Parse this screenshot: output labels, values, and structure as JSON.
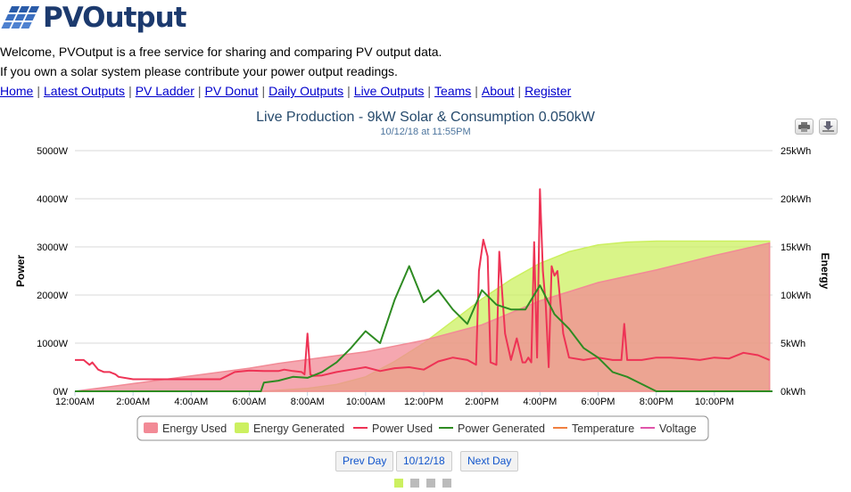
{
  "logo": {
    "text": "PVOutput"
  },
  "intro": {
    "line1": "Welcome, PVOutput is a free service for sharing and comparing PV output data.",
    "line2": "If you own a solar system please contribute your power output readings."
  },
  "nav": [
    "Home",
    "Latest Outputs",
    "PV Ladder",
    "PV Donut",
    "Daily Outputs",
    "Live Outputs",
    "Teams",
    "About",
    "Register"
  ],
  "pager": {
    "prev": "Prev Day",
    "current": "10/12/18",
    "next": "Next Day",
    "page_count": 4,
    "active_page": 0
  },
  "colors": {
    "energy_used": "#f28a96",
    "energy_generated": "#ccf060",
    "power_used": "#ee3355",
    "power_generated": "#2e8b22",
    "temperature": "#f08040",
    "voltage": "#e055aa",
    "title": "#274b6d",
    "axis_text": "#000000",
    "grid": "#d8d8d8"
  },
  "chart_data": {
    "type": "line",
    "title": "Live Production - 9kW Solar & Consumption 0.050kW",
    "subtitle": "10/12/18 at 11:55PM",
    "ylabel": "Power",
    "y2label": "Energy",
    "ylim": [
      0,
      5000
    ],
    "y2lim": [
      0,
      25
    ],
    "yticks": [
      "0W",
      "1000W",
      "2000W",
      "3000W",
      "4000W",
      "5000W"
    ],
    "y2ticks": [
      "0kWh",
      "5kWh",
      "10kWh",
      "15kWh",
      "20kWh",
      "25kWh"
    ],
    "xlim": [
      0,
      24
    ],
    "xticks": [
      "12:00AM",
      "2:00AM",
      "4:00AM",
      "6:00AM",
      "8:00AM",
      "10:00AM",
      "12:00PM",
      "2:00PM",
      "4:00PM",
      "6:00PM",
      "8:00PM",
      "10:00PM"
    ],
    "grid": true,
    "legend_position": "bottom",
    "series": [
      {
        "name": "Energy Used",
        "kind": "area",
        "axis": "right",
        "color": "#f28a96",
        "x": [
          0,
          2,
          4,
          6,
          7,
          8,
          10,
          12,
          14,
          16,
          18,
          20,
          22,
          23.9
        ],
        "y": [
          0,
          0.8,
          1.6,
          2.4,
          2.9,
          3.3,
          4.1,
          5.3,
          6.9,
          9.4,
          11.3,
          12.6,
          14.1,
          15.4
        ]
      },
      {
        "name": "Energy Generated",
        "kind": "area",
        "axis": "right",
        "color": "#ccf060",
        "x": [
          0,
          6.4,
          7,
          8,
          9,
          10,
          11,
          12,
          13,
          14,
          15,
          16,
          17,
          18,
          19,
          20,
          22,
          23.9
        ],
        "y": [
          0,
          0,
          0.1,
          0.3,
          0.7,
          1.5,
          3.1,
          5.0,
          7.3,
          9.6,
          11.6,
          13.3,
          14.5,
          15.2,
          15.5,
          15.6,
          15.6,
          15.6
        ]
      },
      {
        "name": "Power Used",
        "kind": "line",
        "axis": "left",
        "color": "#ee3355",
        "x": [
          0,
          0.3,
          0.5,
          0.6,
          0.8,
          1,
          1.2,
          1.4,
          1.5,
          2,
          3,
          4,
          5,
          5.5,
          6,
          6.5,
          7,
          7.2,
          7.5,
          7.8,
          7.9,
          8,
          8.1,
          8.2,
          8.5,
          9,
          9.5,
          10,
          10.5,
          11,
          11.5,
          12,
          12.5,
          13,
          13.5,
          13.8,
          13.9,
          14.05,
          14.2,
          14.3,
          14.5,
          14.6,
          14.8,
          15,
          15.2,
          15.4,
          15.5,
          15.6,
          15.7,
          15.8,
          15.9,
          16,
          16.1,
          16.2,
          16.3,
          16.4,
          16.5,
          16.6,
          16.8,
          17,
          17.5,
          18,
          18.5,
          18.8,
          18.9,
          19,
          19.5,
          20,
          20.5,
          21,
          21.5,
          22,
          22.5,
          23,
          23.5,
          23.9
        ],
        "y": [
          650,
          650,
          550,
          600,
          450,
          400,
          400,
          350,
          300,
          250,
          250,
          250,
          250,
          400,
          430,
          420,
          420,
          450,
          420,
          400,
          350,
          1200,
          350,
          320,
          330,
          400,
          450,
          500,
          420,
          480,
          500,
          450,
          620,
          700,
          650,
          550,
          2500,
          3150,
          2800,
          600,
          550,
          2900,
          1200,
          650,
          1100,
          600,
          600,
          700,
          600,
          3100,
          700,
          4200,
          2500,
          1800,
          500,
          2600,
          2400,
          2500,
          1200,
          700,
          650,
          700,
          650,
          650,
          1400,
          650,
          650,
          700,
          700,
          680,
          650,
          700,
          680,
          800,
          750,
          650
        ]
      },
      {
        "name": "Power Generated",
        "kind": "line",
        "axis": "left",
        "color": "#2e8b22",
        "x": [
          0,
          6.4,
          6.5,
          7,
          7.5,
          8,
          8.5,
          9,
          9.5,
          10,
          10.5,
          11,
          11.5,
          12,
          12.5,
          13,
          13.5,
          14,
          14.5,
          15,
          15.5,
          16,
          16.5,
          17,
          17.5,
          18,
          18.5,
          19,
          19.5,
          20,
          24
        ],
        "y": [
          0,
          0,
          180,
          220,
          300,
          280,
          400,
          600,
          900,
          1250,
          1000,
          1900,
          2600,
          1850,
          2100,
          1700,
          1400,
          2100,
          1800,
          1700,
          1700,
          2200,
          1600,
          1300,
          900,
          700,
          400,
          300,
          150,
          0,
          0
        ]
      },
      {
        "name": "Temperature",
        "kind": "line",
        "axis": "left",
        "color": "#f08040",
        "x": [],
        "y": []
      },
      {
        "name": "Voltage",
        "kind": "line",
        "axis": "left",
        "color": "#e055aa",
        "x": [],
        "y": []
      }
    ]
  }
}
